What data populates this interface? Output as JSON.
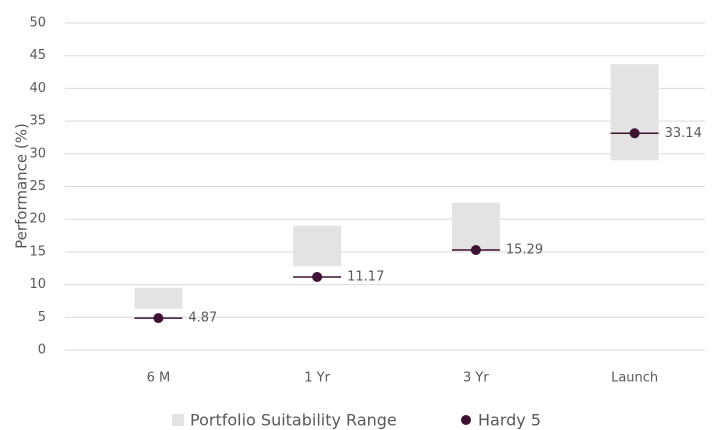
{
  "chart_data": {
    "type": "range-dot",
    "y_axis_label": "Performance (%)",
    "categories": [
      "6 M",
      "1 Yr",
      "3 Yr",
      "Launch"
    ],
    "series": [
      {
        "name": "Portfolio Suitability Range",
        "color": "#e3e3e3",
        "low": [
          6.3,
          12.8,
          15.3,
          29
        ],
        "high": [
          9.5,
          19,
          22.5,
          43.7
        ]
      },
      {
        "name": "Hardy 5",
        "color": "#3d1233",
        "values": [
          4.87,
          11.17,
          15.29,
          33.14
        ]
      }
    ],
    "ylim": [
      0,
      50
    ],
    "yticks": [
      0,
      5,
      10,
      15,
      20,
      25,
      30,
      35,
      40,
      45,
      50
    ],
    "grid": true
  }
}
